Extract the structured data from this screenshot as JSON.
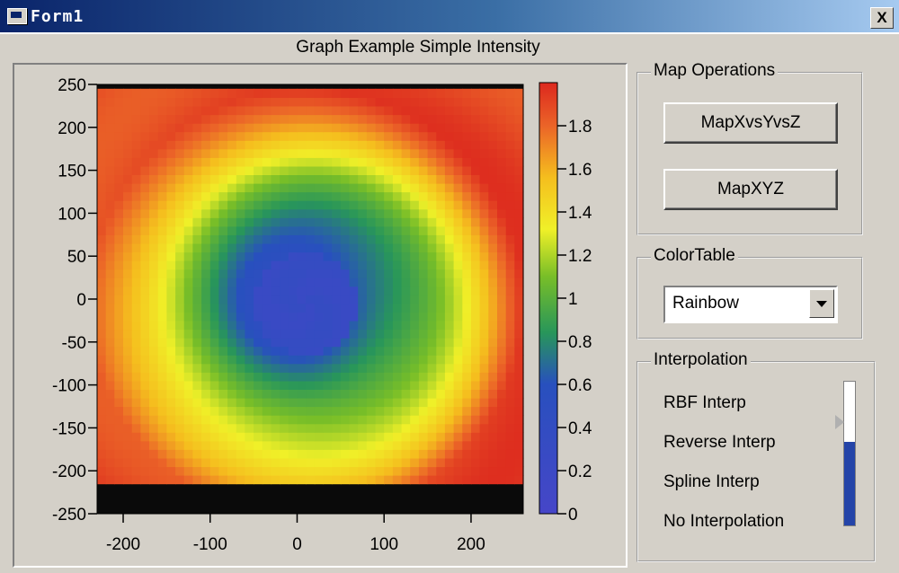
{
  "window": {
    "title": "Form1",
    "close_symbol": "X",
    "icon": "app-window-icon"
  },
  "chart_title": "Graph Example Simple Intensity",
  "chart_data": {
    "type": "heatmap",
    "title": "Graph Example Simple Intensity",
    "xlabel": "",
    "ylabel": "",
    "xlim": [
      -230,
      260
    ],
    "ylim": [
      -250,
      250
    ],
    "x_ticks": [
      -200,
      -100,
      0,
      100,
      200
    ],
    "y_ticks": [
      250,
      200,
      150,
      100,
      50,
      0,
      -50,
      -100,
      -150,
      -200,
      -250
    ],
    "colorbar": {
      "range": [
        0,
        2
      ],
      "ticks": [
        1.8,
        1.6,
        1.4,
        1.2,
        1,
        0.8,
        0.6,
        0.4,
        0.2,
        0
      ],
      "colormap": "Rainbow"
    },
    "z_description_values": {
      "center_min": 0.3,
      "outer_max": 1.9
    },
    "no_data_color": "#0a0a0a"
  },
  "panels": {
    "map_operations": {
      "label": "Map Operations",
      "buttons": [
        "MapXvsYvsZ",
        "MapXYZ"
      ]
    },
    "color_table": {
      "label": "ColorTable",
      "selected": "Rainbow"
    },
    "interpolation": {
      "label": "Interpolation",
      "options": [
        "RBF Interp",
        "Reverse Interp",
        "Spline Interp",
        "No Interpolation"
      ],
      "slider_level_percent": 72
    }
  }
}
